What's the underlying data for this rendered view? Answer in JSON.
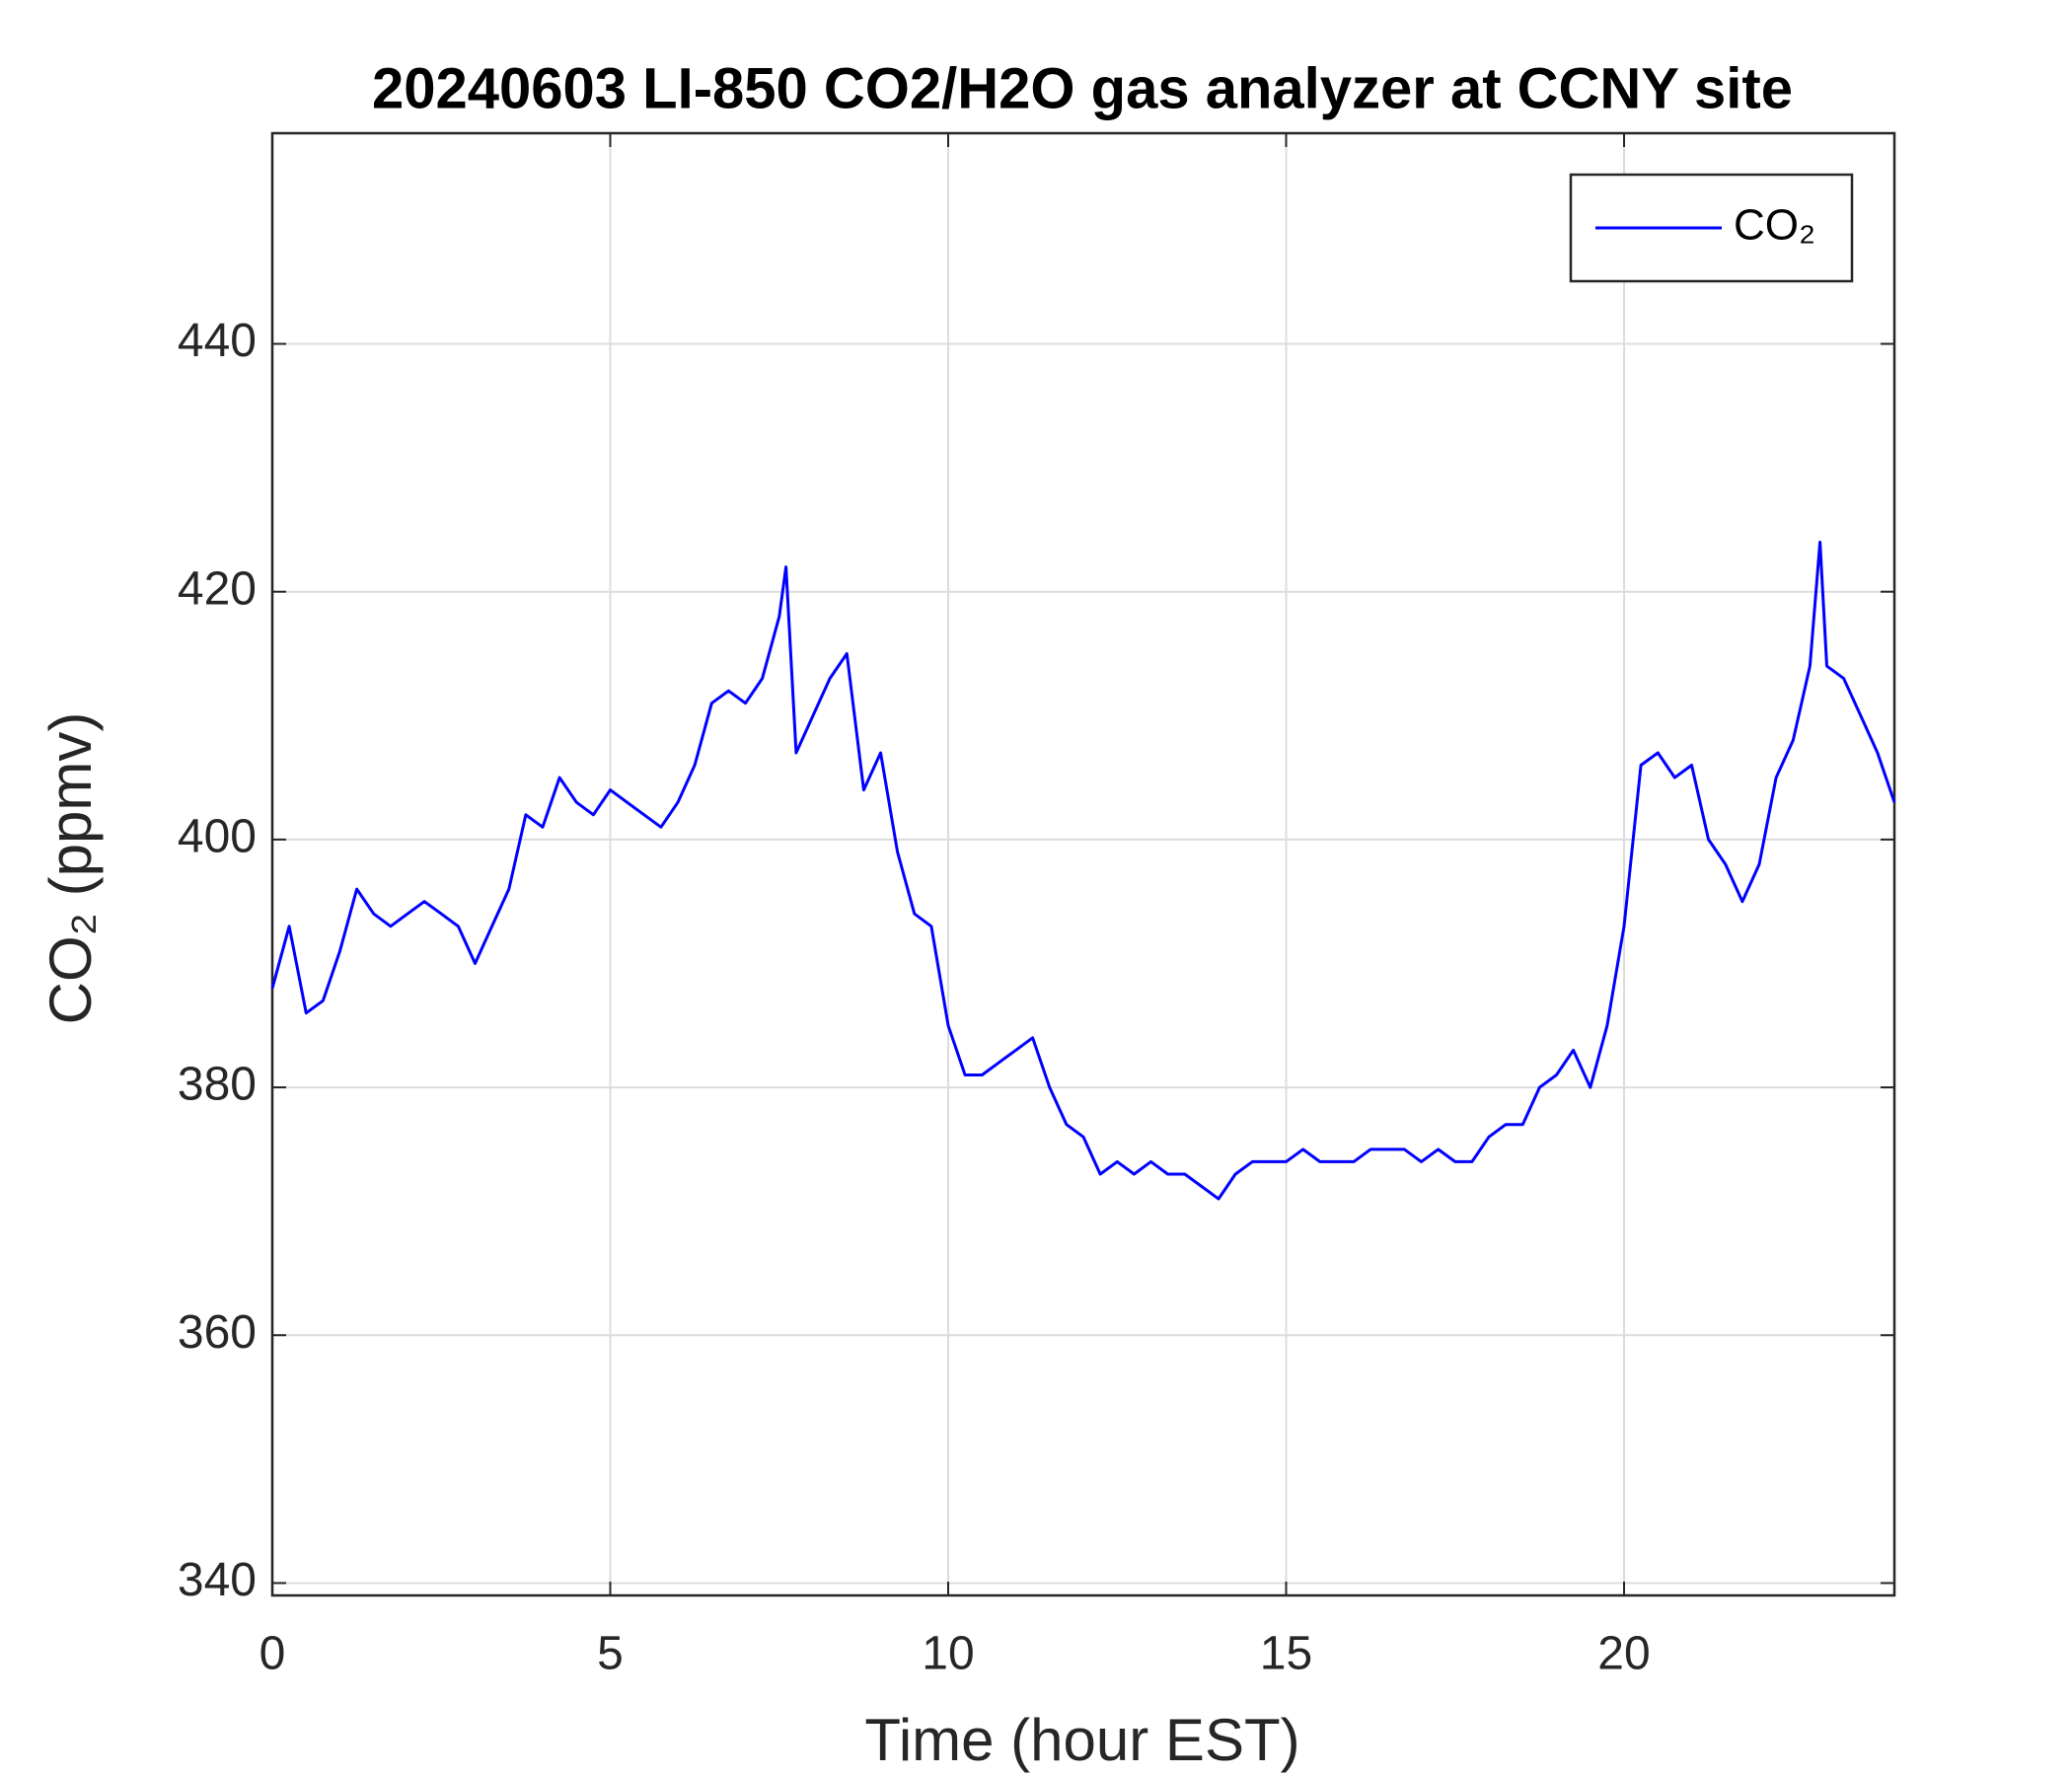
{
  "chart_data": {
    "type": "line",
    "title": "20240603 LI-850 CO2/H2O gas analyzer at CCNY site",
    "xlabel": "Time (hour EST)",
    "ylabel": "CO₂ (ppmv)",
    "x": [
      0,
      0.25,
      0.5,
      0.75,
      1,
      1.25,
      1.5,
      1.75,
      2,
      2.25,
      2.5,
      2.75,
      3,
      3.25,
      3.5,
      3.75,
      4,
      4.25,
      4.5,
      4.75,
      5,
      5.25,
      5.5,
      5.75,
      6,
      6.25,
      6.5,
      6.75,
      7,
      7.25,
      7.5,
      7.6,
      7.75,
      8,
      8.25,
      8.5,
      8.75,
      9,
      9.25,
      9.5,
      9.75,
      10,
      10.25,
      10.5,
      10.75,
      11,
      11.25,
      11.5,
      11.75,
      12,
      12.25,
      12.5,
      12.75,
      13,
      13.25,
      13.5,
      13.75,
      14,
      14.25,
      14.5,
      14.75,
      15,
      15.25,
      15.5,
      15.75,
      16,
      16.25,
      16.5,
      16.75,
      17,
      17.25,
      17.5,
      17.75,
      18,
      18.25,
      18.5,
      18.75,
      19,
      19.25,
      19.5,
      19.75,
      20,
      20.25,
      20.5,
      20.75,
      21,
      21.25,
      21.5,
      21.75,
      22,
      22.25,
      22.5,
      22.75,
      22.9,
      23,
      23.25,
      23.5,
      23.75,
      24
    ],
    "series": [
      {
        "name": "CO₂",
        "color": "#0000ff",
        "values": [
          388,
          393,
          386,
          387,
          391,
          396,
          394,
          393,
          394,
          395,
          394,
          393,
          390,
          393,
          396,
          402,
          401,
          405,
          403,
          402,
          404,
          403,
          402,
          401,
          403,
          406,
          411,
          412,
          411,
          413,
          418,
          422,
          407,
          410,
          413,
          415,
          404,
          407,
          399,
          394,
          393,
          385,
          381,
          381,
          382,
          383,
          384,
          380,
          377,
          376,
          373,
          374,
          373,
          374,
          373,
          373,
          372,
          371,
          373,
          374,
          374,
          374,
          375,
          374,
          374,
          374,
          375,
          375,
          375,
          374,
          375,
          374,
          374,
          376,
          377,
          377,
          380,
          381,
          383,
          380,
          385,
          393,
          406,
          407,
          405,
          406,
          400,
          398,
          395,
          398,
          405,
          408,
          414,
          424,
          414,
          413,
          410,
          407,
          403
        ]
      }
    ],
    "xlim": [
      0,
      24
    ],
    "ylim": [
      339,
      457
    ],
    "xticks": [
      0,
      5,
      10,
      15,
      20
    ],
    "yticks": [
      340,
      360,
      380,
      400,
      420,
      440
    ],
    "grid": true,
    "legend": "upper right"
  }
}
